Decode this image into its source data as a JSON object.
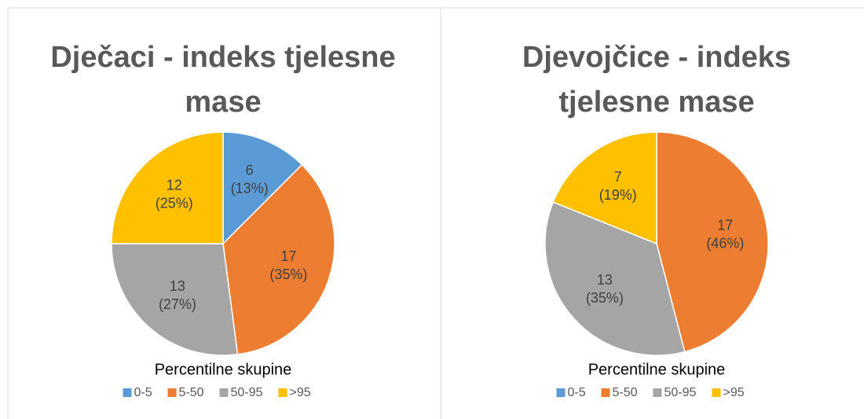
{
  "chart_data": [
    {
      "type": "pie",
      "title_lines": [
        "Dječaci - indeks tjelesne",
        "mase"
      ],
      "categories": [
        "0-5",
        "5-50",
        "50-95",
        ">95"
      ],
      "values": [
        6,
        17,
        13,
        12
      ],
      "percent_labels": [
        "(13%)",
        "(35%)",
        "(27%)",
        "(25%)"
      ],
      "colors": [
        "#5b9bd5",
        "#ed7d31",
        "#a5a5a5",
        "#ffc000"
      ],
      "legend_title": "Percentilne skupine"
    },
    {
      "type": "pie",
      "title_lines": [
        "Djevojčice - indeks",
        "tjelesne mase"
      ],
      "categories": [
        "0-5",
        "5-50",
        "50-95",
        ">95"
      ],
      "values": [
        0,
        17,
        13,
        7
      ],
      "percent_labels": [
        "(0%)",
        "(46%)",
        "(35%)",
        "(19%)"
      ],
      "colors": [
        "#5b9bd5",
        "#ed7d31",
        "#a5a5a5",
        "#ffc000"
      ],
      "legend_title": "Percentilne skupine"
    }
  ]
}
